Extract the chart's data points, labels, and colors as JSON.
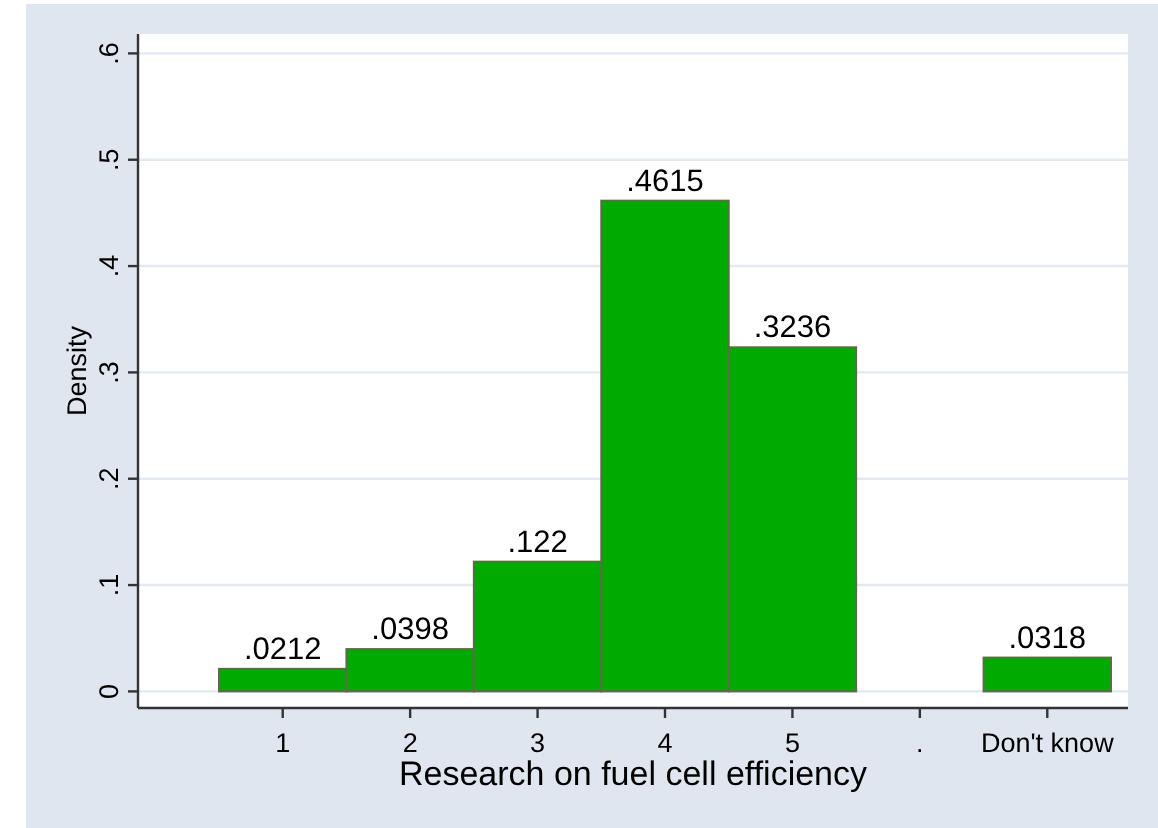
{
  "chart_data": {
    "type": "bar",
    "xlabel": "Research on fuel cell efficiency",
    "ylabel": "Density",
    "categories": [
      "1",
      "2",
      "3",
      "4",
      "5",
      ".",
      "Don't know"
    ],
    "values": [
      0.0212,
      0.0398,
      0.122,
      0.4615,
      0.3236,
      null,
      0.0318
    ],
    "value_labels": [
      ".0212",
      ".0398",
      ".122",
      ".4615",
      ".3236",
      null,
      ".0318"
    ],
    "color": "#00aa00",
    "ylim": [
      0,
      0.6
    ],
    "yticks": [
      0,
      {
        "value": 0.1,
        "label": ".1"
      },
      {
        "value": 0.2,
        "label": ".2"
      },
      {
        "value": 0.3,
        "label": ".3"
      },
      {
        "value": 0.4,
        "label": ".4"
      },
      {
        "value": 0.5,
        "label": ".5"
      },
      {
        "value": 0.6,
        "label": ".6"
      }
    ],
    "grid": "y"
  }
}
